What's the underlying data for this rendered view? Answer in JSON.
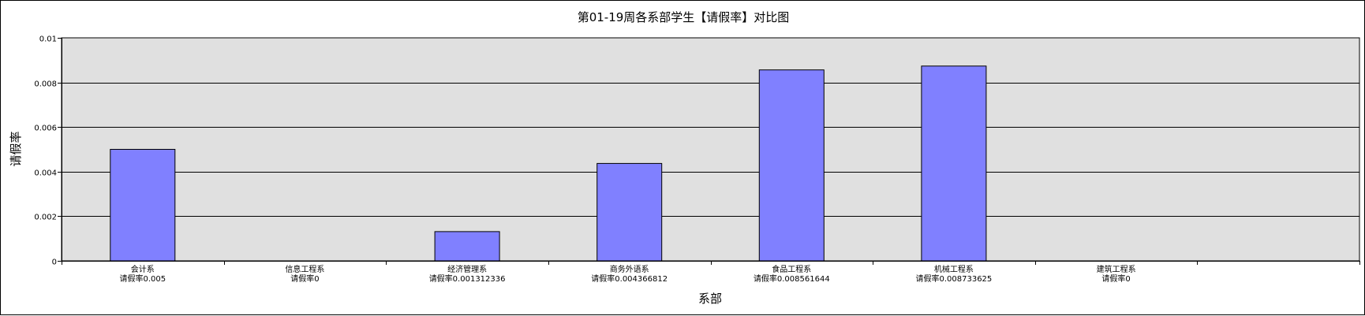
{
  "chart_data": {
    "type": "bar",
    "title": "第01-19周各系部学生【请假率】对比图",
    "xlabel": "系部",
    "ylabel": "请假率",
    "ylim": [
      0,
      0.01
    ],
    "yticks": [
      "0",
      "0.002",
      "0.004",
      "0.006",
      "0.008",
      "0.01"
    ],
    "grid": true,
    "legend": "none",
    "categories": [
      "会计系",
      "信息工程系",
      "经济管理系",
      "商务外语系",
      "食品工程系",
      "机械工程系",
      "建筑工程系"
    ],
    "category_value_labels": [
      "请假率0.005",
      "请假率0",
      "请假率0.001312336",
      "请假率0.004366812",
      "请假率0.008561644",
      "请假率0.008733625",
      "请假率0"
    ],
    "values": [
      0.005,
      0,
      0.001312336,
      0.004366812,
      0.008561644,
      0.008733625,
      0
    ],
    "slot_count": 8,
    "colors": {
      "bar_fill": "#8080ff",
      "bar_stroke": "#000000",
      "plot_background": "#e0e0e0",
      "grid": "#000000"
    }
  }
}
